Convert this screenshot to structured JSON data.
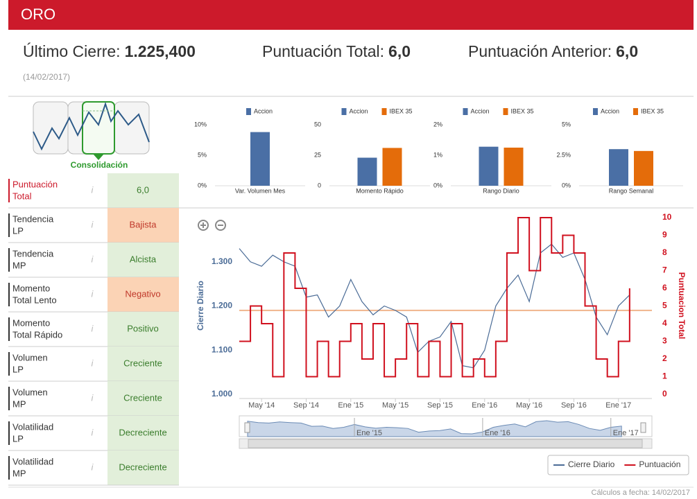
{
  "header": {
    "title": "ORO"
  },
  "summary": [
    {
      "label": "Último Cierre:",
      "value": "1.225,400"
    },
    {
      "label": "Puntuación Total:",
      "value": "6,0"
    },
    {
      "label": "Puntuación Anterior:",
      "value": "6,0"
    }
  ],
  "date": "(14/02/2017)",
  "pattern": {
    "label": "Consolidación"
  },
  "tones": {
    "positive": {
      "bg": "#e2efda",
      "fg": "#3a7d2c"
    },
    "negative": {
      "bg": "#fbd3b5",
      "fg": "#c0392b"
    }
  },
  "indicators": [
    {
      "label": [
        "Puntuación",
        "Total"
      ],
      "value": "6,0",
      "tone": "positive"
    },
    {
      "label": [
        "Tendencia",
        "LP"
      ],
      "value": "Bajista",
      "tone": "negative"
    },
    {
      "label": [
        "Tendencia",
        "MP"
      ],
      "value": "Alcista",
      "tone": "positive"
    },
    {
      "label": [
        "Momento",
        "Total Lento"
      ],
      "value": "Negativo",
      "tone": "negative"
    },
    {
      "label": [
        "Momento",
        "Total Rápido"
      ],
      "value": "Positivo",
      "tone": "positive"
    },
    {
      "label": [
        "Volumen",
        "LP"
      ],
      "value": "Creciente",
      "tone": "positive"
    },
    {
      "label": [
        "Volumen",
        "MP"
      ],
      "value": "Creciente",
      "tone": "positive"
    },
    {
      "label": [
        "Volatilidad",
        "LP"
      ],
      "value": "Decreciente",
      "tone": "positive"
    },
    {
      "label": [
        "Volatilidad",
        "MP"
      ],
      "value": "Decreciente",
      "tone": "positive"
    }
  ],
  "chart_data": [
    {
      "type": "bar",
      "categories": [
        "Var. Volumen Mes"
      ],
      "series": [
        {
          "name": "Accion",
          "color": "#4a6fa5",
          "values": [
            8.8
          ]
        }
      ],
      "ylim": [
        0,
        10
      ],
      "yticks": [
        {
          "value": 0,
          "label": "0%"
        },
        {
          "value": 5,
          "label": "5%"
        },
        {
          "value": 10,
          "label": "10%"
        }
      ]
    },
    {
      "type": "bar",
      "categories": [
        "Momento Rápido"
      ],
      "series": [
        {
          "name": "Accion",
          "color": "#4a6fa5",
          "values": [
            23
          ]
        },
        {
          "name": "IBEX 35",
          "color": "#e46c0a",
          "values": [
            31
          ]
        }
      ],
      "ylim": [
        0,
        50
      ],
      "yticks": [
        0,
        25,
        50
      ]
    },
    {
      "type": "bar",
      "categories": [
        "Rango Diario"
      ],
      "series": [
        {
          "name": "Accion",
          "color": "#4a6fa5",
          "values": [
            1.28
          ]
        },
        {
          "name": "IBEX 35",
          "color": "#e46c0a",
          "values": [
            1.25
          ]
        }
      ],
      "ylim": [
        0,
        2
      ],
      "yticks": [
        {
          "value": 0,
          "label": "0%"
        },
        {
          "value": 1,
          "label": "1%"
        },
        {
          "value": 2,
          "label": "2%"
        }
      ]
    },
    {
      "type": "bar",
      "categories": [
        "Rango Semanal"
      ],
      "series": [
        {
          "name": "Accion",
          "color": "#4a6fa5",
          "values": [
            3.0
          ]
        },
        {
          "name": "IBEX 35",
          "color": "#e46c0a",
          "values": [
            2.85
          ]
        }
      ],
      "ylim": [
        0,
        5
      ],
      "yticks": [
        {
          "value": 0,
          "label": "0%"
        },
        {
          "value": 2.5,
          "label": "2.5%"
        },
        {
          "value": 5,
          "label": "5%"
        }
      ]
    },
    {
      "type": "line",
      "x": [
        "2014-03",
        "2014-04",
        "2014-05",
        "2014-06",
        "2014-07",
        "2014-08",
        "2014-09",
        "2014-10",
        "2014-11",
        "2014-12",
        "2015-01",
        "2015-02",
        "2015-03",
        "2015-04",
        "2015-05",
        "2015-06",
        "2015-07",
        "2015-08",
        "2015-09",
        "2015-10",
        "2015-11",
        "2015-12",
        "2016-01",
        "2016-02",
        "2016-03",
        "2016-04",
        "2016-05",
        "2016-06",
        "2016-07",
        "2016-08",
        "2016-09",
        "2016-10",
        "2016-11",
        "2016-12",
        "2017-01",
        "2017-02"
      ],
      "series": [
        {
          "name": "Cierre Diario",
          "color": "#4a6b96",
          "values": [
            1330,
            1300,
            1290,
            1315,
            1300,
            1290,
            1220,
            1225,
            1175,
            1200,
            1260,
            1210,
            1180,
            1200,
            1190,
            1175,
            1095,
            1120,
            1130,
            1165,
            1065,
            1060,
            1100,
            1200,
            1240,
            1270,
            1210,
            1320,
            1340,
            1310,
            1320,
            1260,
            1175,
            1135,
            1200,
            1225
          ]
        },
        {
          "name": "Puntuación",
          "color": "#d0101e",
          "axis": "y2",
          "step": true,
          "values": [
            3,
            5,
            4,
            1,
            8,
            6,
            1,
            3,
            1,
            3,
            4,
            2,
            4,
            1,
            2,
            4,
            1,
            3,
            1,
            4,
            1,
            2,
            1,
            3,
            8,
            10,
            7,
            10,
            8,
            9,
            8,
            5,
            2,
            1,
            3,
            6
          ]
        }
      ],
      "xlim": [
        "2014-03",
        "2017-04"
      ],
      "xticks": [
        {
          "value": "2014-05",
          "label": "May '14"
        },
        {
          "value": "2014-09",
          "label": "Sep '14"
        },
        {
          "value": "2015-01",
          "label": "Ene '15"
        },
        {
          "value": "2015-05",
          "label": "May '15"
        },
        {
          "value": "2015-09",
          "label": "Sep '15"
        },
        {
          "value": "2016-01",
          "label": "Ene '16"
        },
        {
          "value": "2016-05",
          "label": "May '16"
        },
        {
          "value": "2016-09",
          "label": "Sep '16"
        },
        {
          "value": "2017-01",
          "label": "Ene '17"
        }
      ],
      "ylim": [
        1000,
        1400
      ],
      "yticks": [
        {
          "value": 1000,
          "label": "1.000"
        },
        {
          "value": 1100,
          "label": "1.100"
        },
        {
          "value": 1200,
          "label": "1.200"
        },
        {
          "value": 1300,
          "label": "1.300"
        }
      ],
      "y2lim": [
        0,
        10
      ],
      "y2ticks": [
        0,
        1,
        2,
        3,
        4,
        5,
        6,
        7,
        8,
        9,
        10
      ],
      "ylabel": "Cierre Diario",
      "y2label": "Puntuacion Total",
      "reference_line": {
        "value": 1190,
        "color": "#f0b48c"
      },
      "navigator": {
        "xticks": [
          {
            "value": "2015-01",
            "label": "Ene '15"
          },
          {
            "value": "2016-01",
            "label": "Ene '16"
          },
          {
            "value": "2017-01",
            "label": "Ene '17"
          }
        ]
      },
      "legend": "bottom-right"
    }
  ],
  "footer": "Cálculos a fecha: 14/02/2017"
}
